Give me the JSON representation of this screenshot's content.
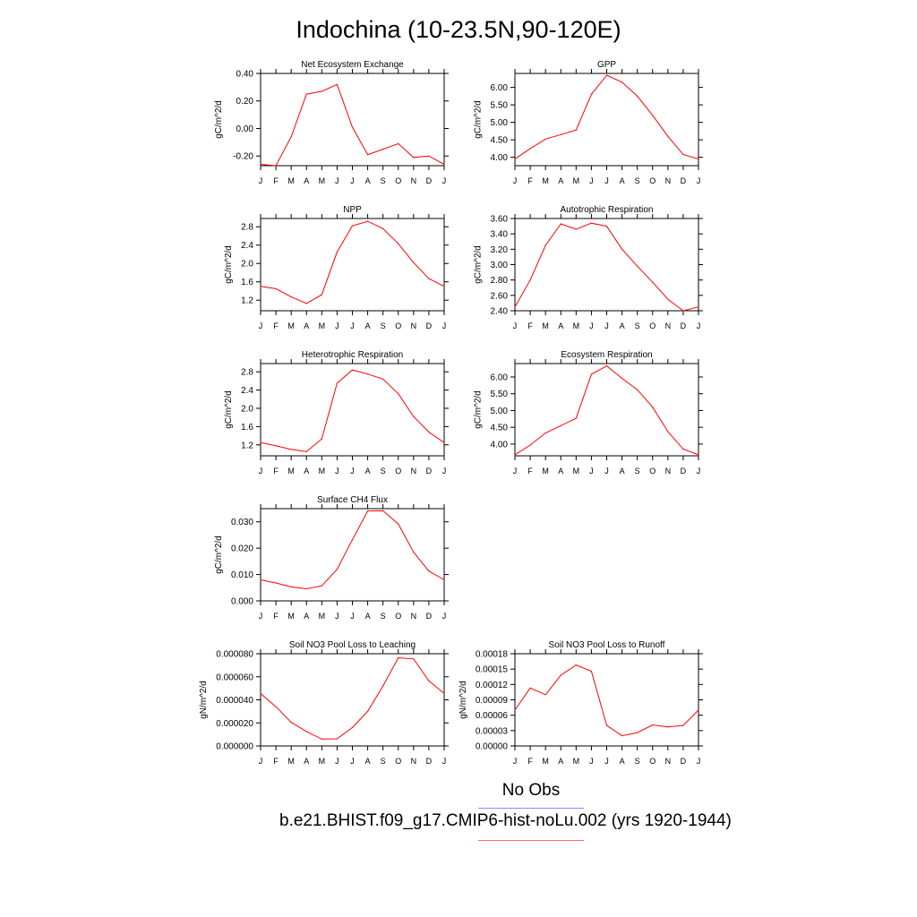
{
  "page_title": "Indochina (10-23.5N,90-120E)",
  "legend": {
    "obs_label": "No Obs",
    "obs_color": "#0000ff",
    "model_label": "b.e21.BHIST.f09_g17.CMIP6-hist-noLu.002 (yrs 1920-1944)",
    "model_color": "#ff0000"
  },
  "chart_data": [
    {
      "type": "line",
      "title": "Net Ecosystem Exchange",
      "ylabel": "gC/m^2/d",
      "x": [
        "J",
        "F",
        "M",
        "A",
        "M",
        "J",
        "J",
        "A",
        "S",
        "O",
        "N",
        "D",
        "J"
      ],
      "ylim": [
        -0.27,
        0.4
      ],
      "yticks": [
        -0.2,
        0.0,
        0.2,
        0.4
      ],
      "yticklabels": [
        "-0.20",
        "0.00",
        "0.20",
        "0.40"
      ],
      "series": [
        {
          "values": [
            -0.26,
            -0.27,
            -0.06,
            0.25,
            0.27,
            0.32,
            0.01,
            -0.19,
            -0.15,
            -0.11,
            -0.21,
            -0.2,
            -0.26
          ]
        }
      ]
    },
    {
      "type": "line",
      "title": "GPP",
      "ylabel": "gC/m^2/d",
      "x": [
        "J",
        "F",
        "M",
        "A",
        "M",
        "J",
        "J",
        "A",
        "S",
        "O",
        "N",
        "D",
        "J"
      ],
      "ylim": [
        3.76,
        6.4
      ],
      "yticks": [
        4.0,
        4.5,
        5.0,
        5.5,
        6.0
      ],
      "yticklabels": [
        "4.00",
        "4.50",
        "5.00",
        "5.50",
        "6.00"
      ],
      "series": [
        {
          "values": [
            3.95,
            4.25,
            4.52,
            4.65,
            4.78,
            5.8,
            6.35,
            6.15,
            5.75,
            5.2,
            4.6,
            4.08,
            3.95
          ]
        }
      ]
    },
    {
      "type": "line",
      "title": "NPP",
      "ylabel": "gC/m^2/d",
      "x": [
        "J",
        "F",
        "M",
        "A",
        "M",
        "J",
        "J",
        "A",
        "S",
        "O",
        "N",
        "D",
        "J"
      ],
      "ylim": [
        0.97,
        2.98
      ],
      "yticks": [
        1.2,
        1.6,
        2.0,
        2.4,
        2.8
      ],
      "yticklabels": [
        "1.2",
        "1.6",
        "2.0",
        "2.4",
        "2.8"
      ],
      "series": [
        {
          "values": [
            1.5,
            1.45,
            1.27,
            1.13,
            1.32,
            2.25,
            2.82,
            2.92,
            2.76,
            2.43,
            2.02,
            1.67,
            1.5
          ]
        }
      ]
    },
    {
      "type": "line",
      "title": "Autotrophic Respiration",
      "ylabel": "gC/m^2/d",
      "x": [
        "J",
        "F",
        "M",
        "A",
        "M",
        "J",
        "J",
        "A",
        "S",
        "O",
        "N",
        "D",
        "J"
      ],
      "ylim": [
        2.4,
        3.6
      ],
      "yticks": [
        2.4,
        2.6,
        2.8,
        3.0,
        3.2,
        3.4,
        3.6
      ],
      "yticklabels": [
        "2.40",
        "2.60",
        "2.80",
        "3.00",
        "3.20",
        "3.40",
        "3.60"
      ],
      "series": [
        {
          "values": [
            2.45,
            2.8,
            3.25,
            3.53,
            3.46,
            3.54,
            3.5,
            3.2,
            2.98,
            2.77,
            2.55,
            2.4,
            2.45
          ]
        }
      ]
    },
    {
      "type": "line",
      "title": "Heterotrophic Respiration",
      "ylabel": "gC/m^2/d",
      "x": [
        "J",
        "F",
        "M",
        "A",
        "M",
        "J",
        "J",
        "A",
        "S",
        "O",
        "N",
        "D",
        "J"
      ],
      "ylim": [
        0.96,
        2.98
      ],
      "yticks": [
        1.2,
        1.6,
        2.0,
        2.4,
        2.8
      ],
      "yticklabels": [
        "1.2",
        "1.6",
        "2.0",
        "2.4",
        "2.8"
      ],
      "series": [
        {
          "values": [
            1.25,
            1.18,
            1.1,
            1.05,
            1.33,
            2.55,
            2.84,
            2.75,
            2.64,
            2.32,
            1.82,
            1.48,
            1.25
          ]
        }
      ]
    },
    {
      "type": "line",
      "title": "Ecosystem Respiration",
      "ylabel": "gC/m^2/d",
      "x": [
        "J",
        "F",
        "M",
        "A",
        "M",
        "J",
        "J",
        "A",
        "S",
        "O",
        "N",
        "D",
        "J"
      ],
      "ylim": [
        3.65,
        6.4
      ],
      "yticks": [
        4.0,
        4.5,
        5.0,
        5.5,
        6.0
      ],
      "yticklabels": [
        "4.00",
        "4.50",
        "5.00",
        "5.50",
        "6.00"
      ],
      "series": [
        {
          "values": [
            3.68,
            3.97,
            4.33,
            4.55,
            4.77,
            6.08,
            6.33,
            5.96,
            5.62,
            5.1,
            4.37,
            3.85,
            3.68
          ]
        }
      ]
    },
    {
      "type": "line",
      "title": "Surface CH4 Flux",
      "ylabel": "gC/m^2/d",
      "x": [
        "J",
        "F",
        "M",
        "A",
        "M",
        "J",
        "J",
        "A",
        "S",
        "O",
        "N",
        "D",
        "J"
      ],
      "ylim": [
        0.0,
        0.035
      ],
      "yticks": [
        0.0,
        0.01,
        0.02,
        0.03
      ],
      "yticklabels": [
        "0.000",
        "0.010",
        "0.020",
        "0.030"
      ],
      "series": [
        {
          "values": [
            0.008,
            0.0068,
            0.0053,
            0.0046,
            0.0057,
            0.012,
            0.0232,
            0.0341,
            0.0342,
            0.0292,
            0.0185,
            0.0113,
            0.008
          ]
        }
      ]
    },
    {
      "type": "line",
      "title": "Soil NO3 Pool Loss to Leaching",
      "ylabel": "gN/m^2/d",
      "x": [
        "J",
        "F",
        "M",
        "A",
        "M",
        "J",
        "J",
        "A",
        "S",
        "O",
        "N",
        "D",
        "J"
      ],
      "ylim": [
        0.0,
        8e-05
      ],
      "yticks": [
        0.0,
        2e-05,
        4e-05,
        6e-05,
        8e-05
      ],
      "yticklabels": [
        "0.000000",
        "0.000020",
        "0.000040",
        "0.000060",
        "0.000080"
      ],
      "series": [
        {
          "values": [
            4.55e-05,
            3.4e-05,
            2.05e-05,
            1.25e-05,
            6e-06,
            6.2e-06,
            1.6e-05,
            3e-05,
            5.2e-05,
            7.65e-05,
            7.55e-05,
            5.65e-05,
            4.55e-05
          ]
        }
      ]
    },
    {
      "type": "line",
      "title": "Soil NO3 Pool Loss to Runoff",
      "ylabel": "gN/m^2/d",
      "x": [
        "J",
        "F",
        "M",
        "A",
        "M",
        "J",
        "J",
        "A",
        "S",
        "O",
        "N",
        "D",
        "J"
      ],
      "ylim": [
        0.0,
        0.00018
      ],
      "yticks": [
        0.0,
        3e-05,
        6e-05,
        9e-05,
        0.00012,
        0.00015,
        0.00018
      ],
      "yticklabels": [
        "0.00000",
        "0.00003",
        "0.00006",
        "0.00009",
        "0.00012",
        "0.00015",
        "0.00018"
      ],
      "series": [
        {
          "values": [
            7e-05,
            0.000113,
            0.0001,
            0.000138,
            0.000158,
            0.000146,
            4e-05,
            2e-05,
            2.6e-05,
            4.1e-05,
            3.7e-05,
            4e-05,
            7e-05
          ]
        }
      ]
    }
  ]
}
